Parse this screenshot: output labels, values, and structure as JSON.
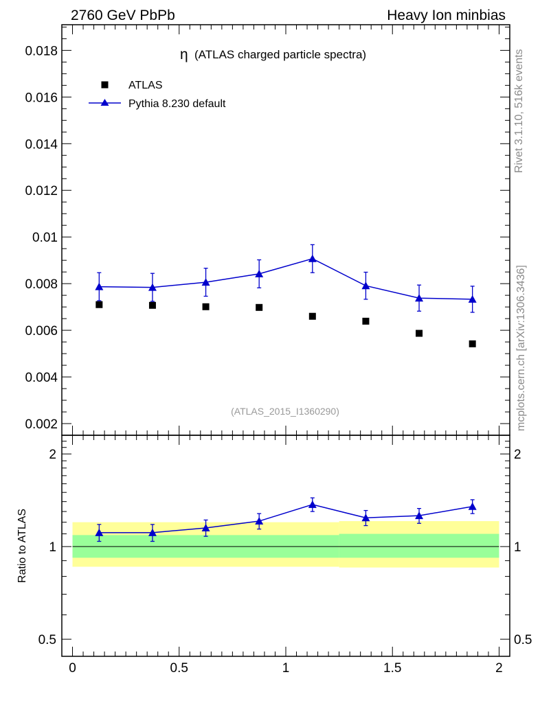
{
  "header": {
    "left": "2760 GeV PbPb",
    "right": "Heavy Ion minbias"
  },
  "side": {
    "rivet": "Rivet 3.1.10,  516k events",
    "mcplots": "mcplots.cern.ch [arXiv:1306.3436]"
  },
  "chart_data": {
    "type": "scatter",
    "title_symbol": "η",
    "title": "(ATLAS charged particle spectra)",
    "analysis_id": "(ATLAS_2015_I1360290)",
    "xlim": [
      -0.05,
      2.05
    ],
    "xticks": [
      0,
      0.5,
      1,
      1.5,
      2
    ],
    "xtick_labels": [
      "0",
      "0.5",
      "1",
      "1.5",
      "2"
    ],
    "main": {
      "ylim": [
        0.0015,
        0.0191
      ],
      "yticks": [
        0.002,
        0.004,
        0.006,
        0.008,
        0.01,
        0.012,
        0.014,
        0.016,
        0.018
      ],
      "ytick_labels": [
        "0.002",
        "0.004",
        "0.006",
        "0.008",
        "0.01",
        "0.012",
        "0.014",
        "0.016",
        "0.018"
      ]
    },
    "ratio": {
      "ylabel": "Ratio to ATLAS",
      "ylim": [
        0.44,
        2.3
      ],
      "yticks": [
        0.5,
        1,
        2
      ],
      "ytick_labels": [
        "0.5",
        "1",
        "2"
      ],
      "band_edges": [
        0,
        1.25,
        2
      ],
      "band_green_lo": [
        0.92,
        0.92
      ],
      "band_green_hi": [
        1.09,
        1.1
      ],
      "band_yellow_lo": [
        0.86,
        0.855
      ],
      "band_yellow_hi": [
        1.2,
        1.21
      ]
    },
    "series": [
      {
        "name": "ATLAS",
        "marker": "square",
        "color": "#000000",
        "x": [
          0.125,
          0.375,
          0.625,
          0.875,
          1.125,
          1.375,
          1.625,
          1.875
        ],
        "y": [
          0.0071,
          0.00707,
          0.00701,
          0.00698,
          0.0066,
          0.00639,
          0.00587,
          0.00542
        ]
      },
      {
        "name": "Pythia 8.230 default",
        "marker": "triangle",
        "color": "#0000cc",
        "x": [
          0.125,
          0.375,
          0.625,
          0.875,
          1.125,
          1.375,
          1.625,
          1.875
        ],
        "y": [
          0.00787,
          0.00784,
          0.00806,
          0.00842,
          0.00907,
          0.00791,
          0.00738,
          0.00733
        ],
        "yerr": [
          0.0006,
          0.0006,
          0.0006,
          0.0006,
          0.0006,
          0.00058,
          0.00056,
          0.00056
        ],
        "ratio": [
          1.11,
          1.11,
          1.15,
          1.21,
          1.37,
          1.24,
          1.26,
          1.35
        ],
        "ratio_err": [
          0.07,
          0.07,
          0.07,
          0.07,
          0.07,
          0.07,
          0.07,
          0.07
        ]
      }
    ]
  }
}
